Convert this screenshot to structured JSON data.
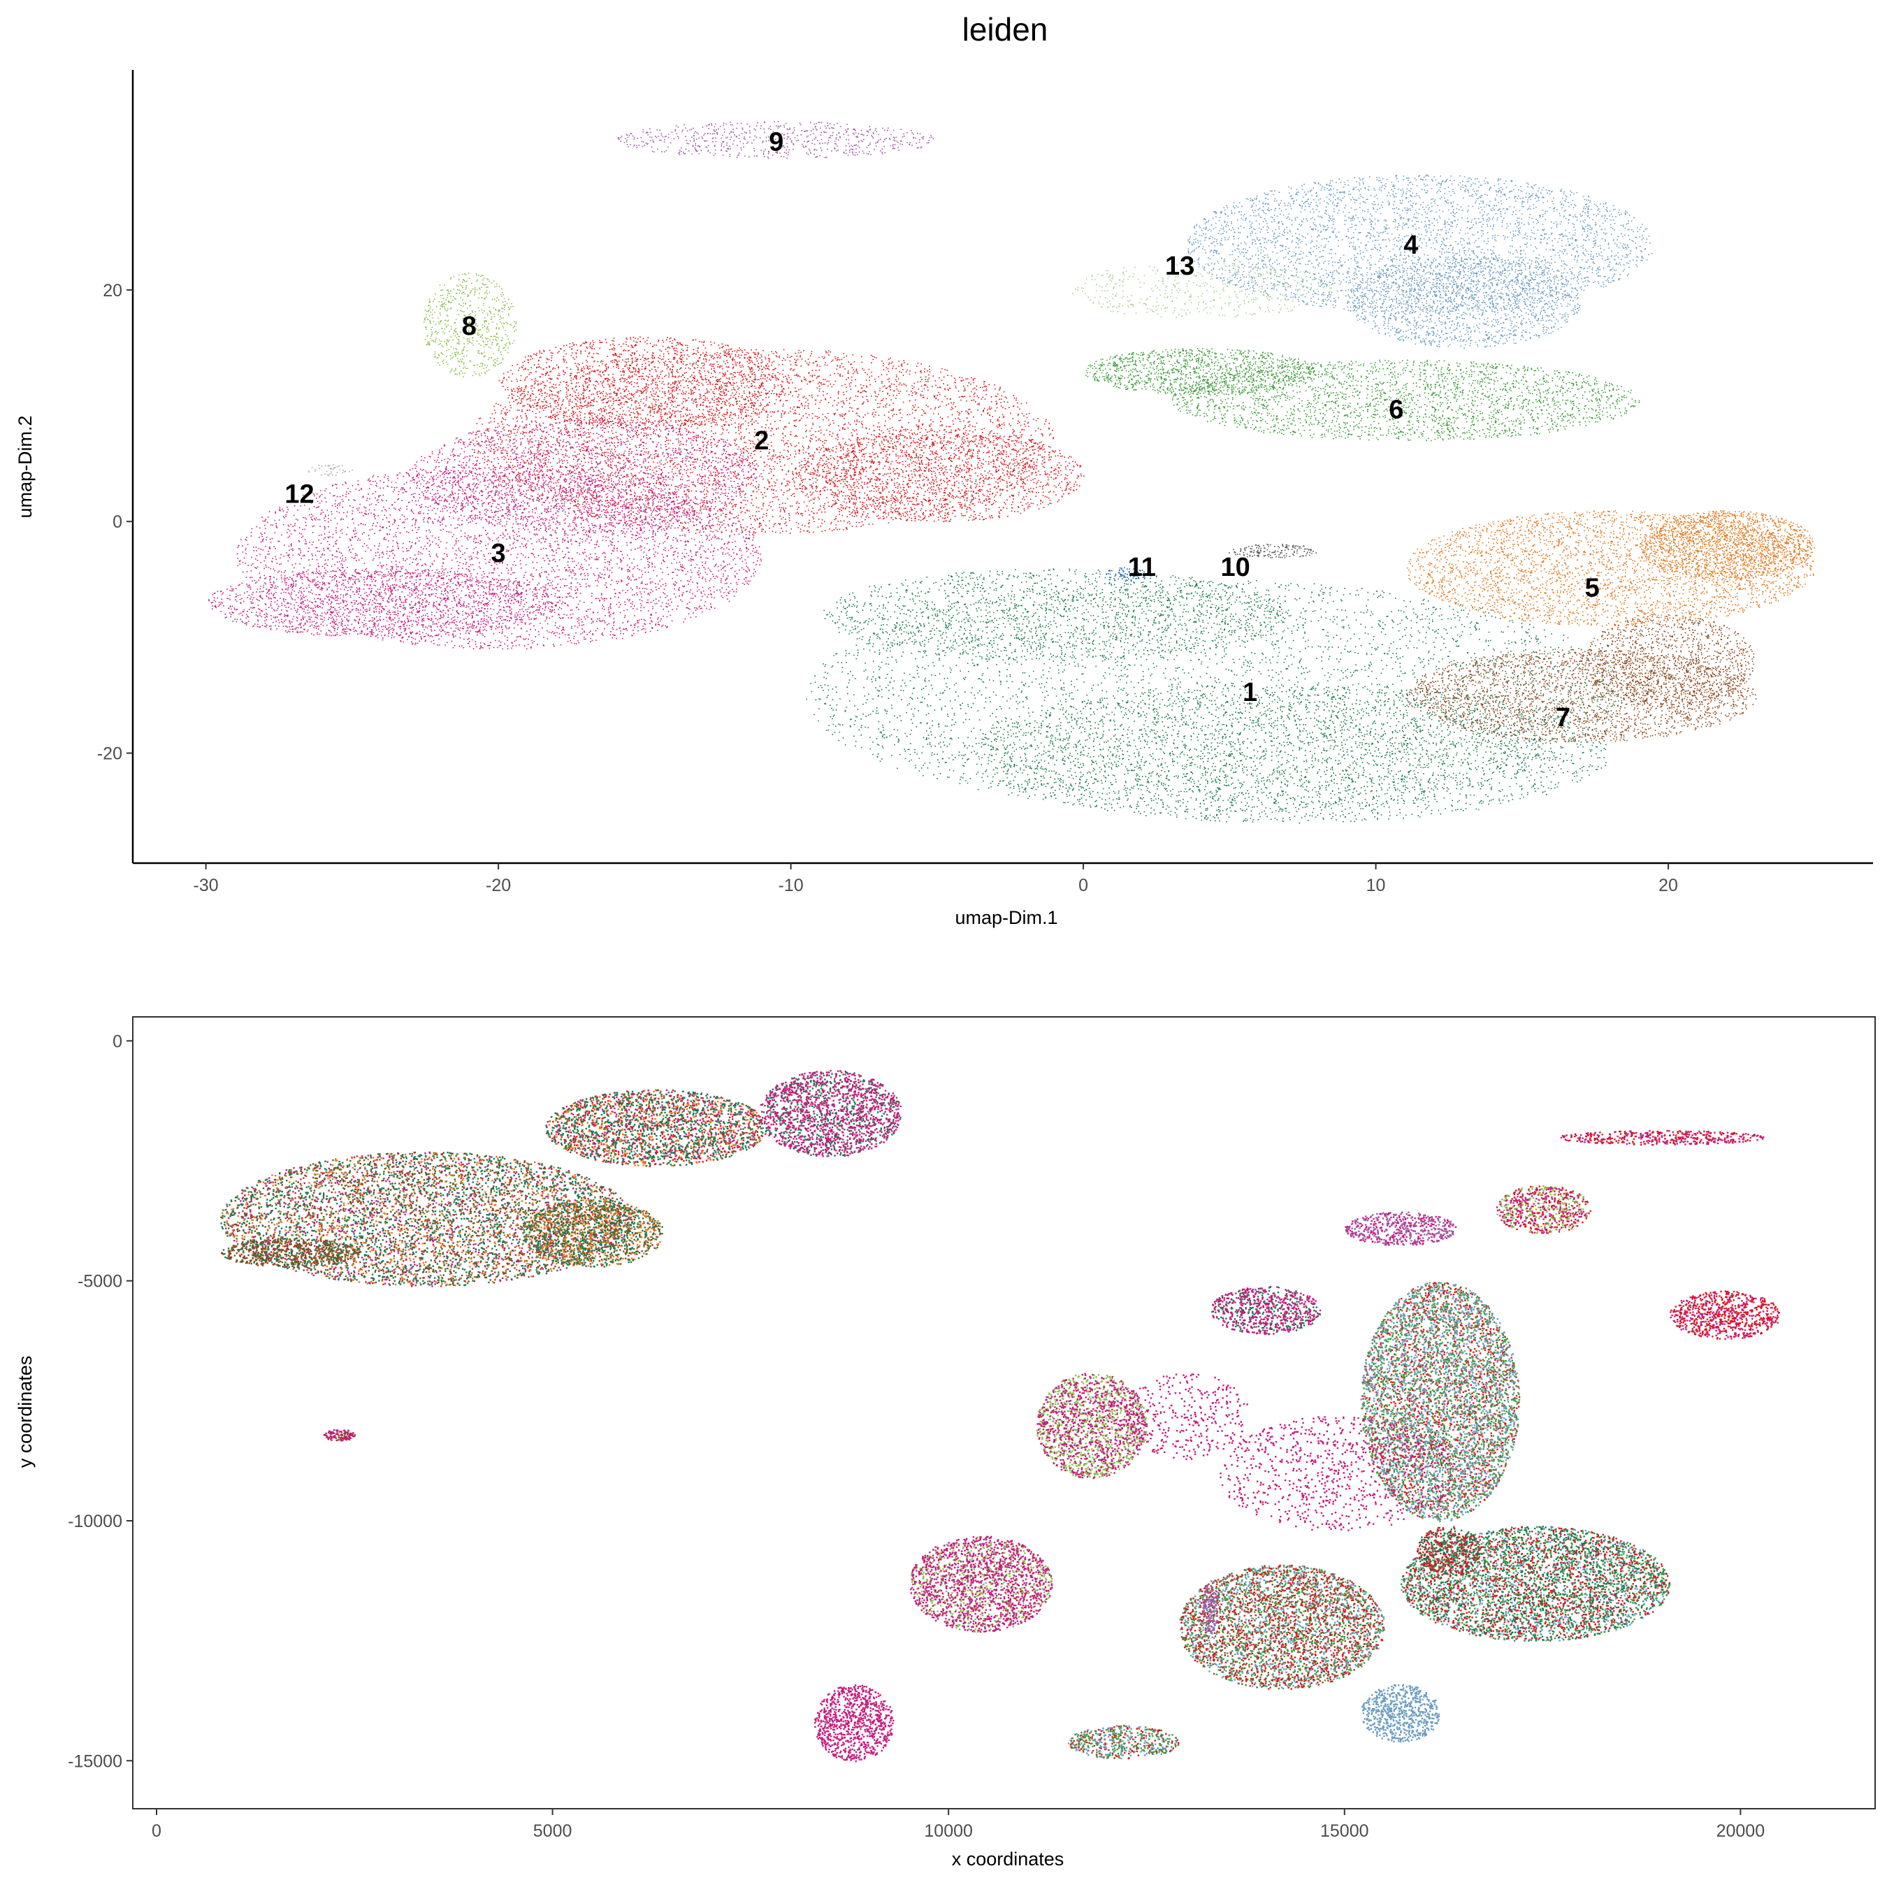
{
  "chart_data": [
    {
      "type": "scatter",
      "title": "leiden",
      "xlabel": "umap-Dim.1",
      "ylabel": "umap-Dim.2",
      "xlim": [
        -32.5,
        27
      ],
      "ylim": [
        -29.5,
        39
      ],
      "xticks": [
        -30,
        -20,
        -10,
        0,
        10,
        20
      ],
      "yticks": [
        -20,
        0,
        20
      ],
      "xtick_labels": [
        "-30",
        "-20",
        "-10",
        "0",
        "10",
        "20"
      ],
      "ytick_labels": [
        "-20",
        "0",
        "20"
      ],
      "grid": false,
      "legend": "none",
      "clusters": [
        {
          "name": "1",
          "color": "#1B7A50",
          "label_pos": [
            5.7,
            -14.7
          ],
          "ellipses": [
            [
              4.5,
              -15,
              14,
              10,
              0.5
            ],
            [
              7,
              -20,
              11,
              6,
              0.35
            ],
            [
              -1,
              -8,
              8,
              4,
              0.2
            ]
          ]
        },
        {
          "name": "2",
          "color": "#D7191C",
          "label_pos": [
            -11.0,
            7.0
          ],
          "ellipses": [
            [
              -11,
              7,
              10,
              8,
              0.6
            ],
            [
              -5,
              4,
              5,
              4,
              0.2
            ],
            [
              -15,
              12,
              5,
              4,
              0.2
            ]
          ]
        },
        {
          "name": "3",
          "color": "#C51B7D",
          "label_pos": [
            -20.0,
            -2.7
          ],
          "ellipses": [
            [
              -20,
              -3,
              9,
              8,
              0.55
            ],
            [
              -24,
              -7,
              6,
              3,
              0.2
            ],
            [
              -17,
              4,
              6,
              5,
              0.25
            ]
          ]
        },
        {
          "name": "4",
          "color": "#6C9DC0",
          "label_pos": [
            11.2,
            23.9
          ],
          "ellipses": [
            [
              11.5,
              24,
              8,
              6,
              0.45
            ],
            [
              13,
              19,
              4,
              4,
              0.2
            ]
          ]
        },
        {
          "name": "5",
          "color": "#E07A1F",
          "label_pos": [
            17.4,
            -5.7
          ],
          "ellipses": [
            [
              18,
              -4,
              7,
              5,
              0.4
            ],
            [
              22,
              -2,
              3,
              3,
              0.2
            ]
          ]
        },
        {
          "name": "6",
          "color": "#3E9B3B",
          "label_pos": [
            10.7,
            9.7
          ],
          "ellipses": [
            [
              11,
              10.5,
              8,
              3.5,
              0.3
            ],
            [
              4,
              13,
              4,
              2,
              0.15
            ]
          ]
        },
        {
          "name": "7",
          "color": "#8C4A1E",
          "label_pos": [
            16.4,
            -16.9
          ],
          "ellipses": [
            [
              17,
              -15,
              6,
              4,
              0.3
            ],
            [
              20,
              -12,
              3,
              4,
              0.15
            ]
          ]
        },
        {
          "name": "8",
          "color": "#8DBE48",
          "label_pos": [
            -21.0,
            16.9
          ],
          "ellipses": [
            [
              -21,
              17,
              1.6,
              4.5,
              0.08
            ]
          ]
        },
        {
          "name": "9",
          "color": "#A05BA8",
          "label_pos": [
            -10.5,
            32.8
          ],
          "ellipses": [
            [
              -10.5,
              33,
              5.5,
              1.6,
              0.08
            ]
          ]
        },
        {
          "name": "10",
          "color": "#555555",
          "label_pos": [
            5.2,
            -3.9
          ],
          "ellipses": [
            [
              6.5,
              -2.5,
              1.6,
              0.6,
              0.02
            ]
          ]
        },
        {
          "name": "11",
          "color": "#2166AC",
          "label_pos": [
            2.0,
            -3.9
          ],
          "ellipses": [
            [
              1.5,
              -4.5,
              0.8,
              0.6,
              0.01
            ]
          ]
        },
        {
          "name": "12",
          "color": "#AAAAAA",
          "label_pos": [
            -26.8,
            2.4
          ],
          "ellipses": [
            [
              -25.8,
              4.5,
              0.8,
              0.5,
              0.005
            ]
          ]
        },
        {
          "name": "13",
          "color": "#A8D08D",
          "label_pos": [
            3.3,
            22.1
          ],
          "ellipses": [
            [
              4,
              20,
              4.5,
              2.5,
              0.06
            ]
          ]
        }
      ]
    },
    {
      "type": "scatter",
      "title": "",
      "xlabel": "x coordinates",
      "ylabel": "y coordinates",
      "xlim": [
        -300,
        21700
      ],
      "ylim": [
        -16000,
        500
      ],
      "xticks": [
        0,
        5000,
        10000,
        15000,
        20000
      ],
      "yticks": [
        0,
        -5000,
        -10000,
        -15000
      ],
      "xtick_labels": [
        "0",
        "5000",
        "10000",
        "15000",
        "20000"
      ],
      "ytick_labels": [
        "0",
        "-5000",
        "-10000",
        "-15000"
      ],
      "grid": false,
      "legend": "none",
      "regions": [
        {
          "cx": 3400,
          "cy": -3700,
          "rx": 2600,
          "ry": 1400,
          "colors": [
            "#1B7A50",
            "#1B7A50",
            "#8C4A1E",
            "#E07A1F",
            "#C51B7D"
          ]
        },
        {
          "cx": 1700,
          "cy": -4400,
          "rx": 900,
          "ry": 300,
          "colors": [
            "#8C4A1E",
            "#8C4A1E",
            "#1B7A50"
          ]
        },
        {
          "cx": 6300,
          "cy": -1800,
          "rx": 1400,
          "ry": 800,
          "colors": [
            "#1B7A50",
            "#1B7A50",
            "#E07A1F",
            "#C51B7D",
            "#D7191C"
          ]
        },
        {
          "cx": 5500,
          "cy": -4000,
          "rx": 900,
          "ry": 700,
          "colors": [
            "#8C4A1E",
            "#1B7A50",
            "#E07A1F"
          ]
        },
        {
          "cx": 8500,
          "cy": -1500,
          "rx": 900,
          "ry": 900,
          "colors": [
            "#C51B7D",
            "#C51B7D",
            "#1B7A50"
          ]
        },
        {
          "cx": 2300,
          "cy": -8200,
          "rx": 200,
          "ry": 120,
          "colors": [
            "#8C4A1E",
            "#C51B7D"
          ]
        },
        {
          "cx": 8800,
          "cy": -14200,
          "rx": 500,
          "ry": 800,
          "colors": [
            "#C51B7D"
          ]
        },
        {
          "cx": 10400,
          "cy": -11300,
          "rx": 900,
          "ry": 1000,
          "colors": [
            "#C51B7D",
            "#C51B7D",
            "#8DBE48"
          ]
        },
        {
          "cx": 11800,
          "cy": -8000,
          "rx": 700,
          "ry": 1100,
          "colors": [
            "#C51B7D",
            "#8DBE48"
          ]
        },
        {
          "cx": 14000,
          "cy": -5600,
          "rx": 700,
          "ry": 500,
          "colors": [
            "#C51B7D",
            "#C51B7D",
            "#1B7A50"
          ]
        },
        {
          "cx": 14200,
          "cy": -12200,
          "rx": 1300,
          "ry": 1300,
          "colors": [
            "#D7191C",
            "#6C9DC0",
            "#3E9B3B",
            "#8C4A1E"
          ]
        },
        {
          "cx": 16200,
          "cy": -7500,
          "rx": 1000,
          "ry": 2500,
          "colors": [
            "#6C9DC0",
            "#D7191C",
            "#3E9B3B"
          ]
        },
        {
          "cx": 17400,
          "cy": -11300,
          "rx": 1700,
          "ry": 1200,
          "colors": [
            "#6C9DC0",
            "#D7191C",
            "#3E9B3B",
            "#1B7A50"
          ]
        },
        {
          "cx": 17500,
          "cy": -3500,
          "rx": 600,
          "ry": 500,
          "colors": [
            "#D7191C",
            "#8DBE48",
            "#C51B7D"
          ]
        },
        {
          "cx": 15700,
          "cy": -14000,
          "rx": 500,
          "ry": 600,
          "colors": [
            "#6C9DC0"
          ]
        },
        {
          "cx": 12200,
          "cy": -14600,
          "rx": 700,
          "ry": 350,
          "colors": [
            "#D7191C",
            "#6C9DC0",
            "#3E9B3B"
          ]
        },
        {
          "cx": 19800,
          "cy": -5700,
          "rx": 700,
          "ry": 500,
          "colors": [
            "#C51B7D",
            "#D7191C"
          ]
        },
        {
          "cx": 15700,
          "cy": -3900,
          "rx": 700,
          "ry": 350,
          "colors": [
            "#A05BA8",
            "#C51B7D"
          ]
        },
        {
          "cx": 16300,
          "cy": -10600,
          "rx": 400,
          "ry": 500,
          "colors": [
            "#1B7A50",
            "#D7191C"
          ]
        },
        {
          "cx": 19000,
          "cy": -2000,
          "rx": 1300,
          "ry": 150,
          "colors": [
            "#C51B7D",
            "#D7191C"
          ]
        },
        {
          "cx": 13300,
          "cy": -11800,
          "rx": 100,
          "ry": 600,
          "colors": [
            "#A05BA8"
          ]
        },
        {
          "cx": 14900,
          "cy": -9000,
          "rx": 1500,
          "ry": 1200,
          "colors": [
            "#C51B7D"
          ],
          "sparse": true
        },
        {
          "cx": 13000,
          "cy": -7800,
          "rx": 800,
          "ry": 900,
          "colors": [
            "#C51B7D"
          ],
          "sparse": true
        }
      ]
    }
  ]
}
